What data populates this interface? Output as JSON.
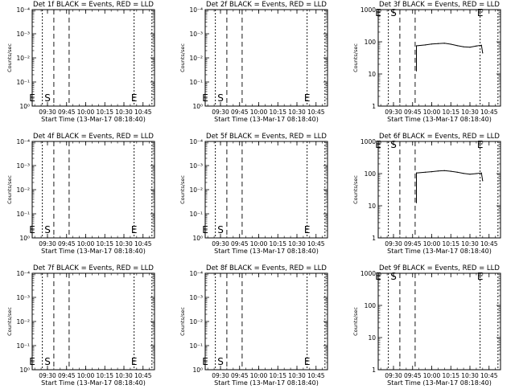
{
  "start_time_label": "Start Time (13-Mar-17 08:18:40)",
  "chart_data": [
    {
      "type": "line",
      "title": "Det 1f BLACK = Events, RED = LLD",
      "ylabel": "Counts/sec",
      "yscale": "log",
      "yticks": [
        "10⁰",
        "10⁻¹",
        "10⁻²",
        "10⁻³",
        "10⁻⁴"
      ],
      "xticks": [
        "09:30",
        "09:45",
        "10:00",
        "10:15",
        "10:30",
        "10:45"
      ],
      "markers": [
        "E",
        "S",
        "E"
      ],
      "series": []
    },
    {
      "type": "line",
      "title": "Det 2f BLACK = Events, RED = LLD",
      "ylabel": "Counts/sec",
      "yscale": "log",
      "yticks": [
        "10⁰",
        "10⁻¹",
        "10⁻²",
        "10⁻³",
        "10⁻⁴"
      ],
      "xticks": [
        "09:30",
        "09:45",
        "10:00",
        "10:15",
        "10:30",
        "10:45"
      ],
      "markers": [
        "E",
        "S",
        "E"
      ],
      "series": []
    },
    {
      "type": "line",
      "title": "Det 3f BLACK = Events, RED = LLD",
      "ylabel": "Counts/sec",
      "yscale": "log",
      "yticks": [
        "1",
        "10",
        "100",
        "1000"
      ],
      "xticks": [
        "09:30",
        "09:45",
        "10:00",
        "10:15",
        "10:30",
        "10:45"
      ],
      "markers": [
        "E",
        "S",
        "E"
      ],
      "series": [
        {
          "color": "#000000",
          "x": [
            "09:48",
            "09:55",
            "10:00",
            "10:05",
            "10:10",
            "10:15",
            "10:20",
            "10:25",
            "10:30",
            "10:35",
            "10:39",
            "10:40"
          ],
          "y": [
            75,
            80,
            85,
            88,
            90,
            84,
            76,
            70,
            68,
            74,
            78,
            45
          ]
        }
      ]
    },
    {
      "type": "line",
      "title": "Det 4f BLACK = Events, RED = LLD",
      "ylabel": "Counts/sec",
      "yscale": "log",
      "yticks": [
        "10⁰",
        "10⁻¹",
        "10⁻²",
        "10⁻³",
        "10⁻⁴"
      ],
      "xticks": [
        "09:30",
        "09:45",
        "10:00",
        "10:15",
        "10:30",
        "10:45"
      ],
      "markers": [
        "E",
        "S",
        "E"
      ],
      "series": []
    },
    {
      "type": "line",
      "title": "Det 5f BLACK = Events, RED = LLD",
      "ylabel": "Counts/sec",
      "yscale": "log",
      "yticks": [
        "10⁰",
        "10⁻¹",
        "10⁻²",
        "10⁻³",
        "10⁻⁴"
      ],
      "xticks": [
        "09:30",
        "09:45",
        "10:00",
        "10:15",
        "10:30",
        "10:45"
      ],
      "markers": [
        "E",
        "S",
        "E"
      ],
      "series": []
    },
    {
      "type": "line",
      "title": "Det 6f BLACK = Events, RED = LLD",
      "ylabel": "Counts/sec",
      "yscale": "log",
      "yticks": [
        "1",
        "10",
        "100",
        "1000"
      ],
      "xticks": [
        "09:30",
        "09:45",
        "10:00",
        "10:15",
        "10:30",
        "10:45"
      ],
      "markers": [
        "E",
        "S",
        "E"
      ],
      "series": [
        {
          "color": "#000000",
          "x": [
            "09:48",
            "09:55",
            "10:00",
            "10:05",
            "10:10",
            "10:15",
            "10:20",
            "10:25",
            "10:30",
            "10:35",
            "10:39",
            "10:40"
          ],
          "y": [
            105,
            110,
            115,
            120,
            124,
            118,
            110,
            102,
            96,
            100,
            104,
            60
          ]
        }
      ]
    },
    {
      "type": "line",
      "title": "Det 7f BLACK = Events, RED = LLD",
      "ylabel": "Counts/sec",
      "yscale": "log",
      "yticks": [
        "10⁰",
        "10⁻¹",
        "10⁻²",
        "10⁻³",
        "10⁻⁴"
      ],
      "xticks": [
        "09:30",
        "09:45",
        "10:00",
        "10:15",
        "10:30",
        "10:45"
      ],
      "markers": [
        "E",
        "S",
        "E"
      ],
      "series": []
    },
    {
      "type": "line",
      "title": "Det 8f BLACK = Events, RED = LLD",
      "ylabel": "Counts/sec",
      "yscale": "log",
      "yticks": [
        "10⁰",
        "10⁻¹",
        "10⁻²",
        "10⁻³",
        "10⁻⁴"
      ],
      "xticks": [
        "09:30",
        "09:45",
        "10:00",
        "10:15",
        "10:30",
        "10:45"
      ],
      "markers": [
        "E",
        "S",
        "E"
      ],
      "series": []
    },
    {
      "type": "line",
      "title": "Det 9f BLACK = Events, RED = LLD",
      "ylabel": "Counts/sec",
      "yscale": "log",
      "yticks": [
        "1",
        "10",
        "100",
        "1000"
      ],
      "xticks": [
        "09:30",
        "09:45",
        "10:00",
        "10:15",
        "10:30",
        "10:45"
      ],
      "markers": [
        "E",
        "S",
        "E"
      ],
      "series": []
    }
  ]
}
